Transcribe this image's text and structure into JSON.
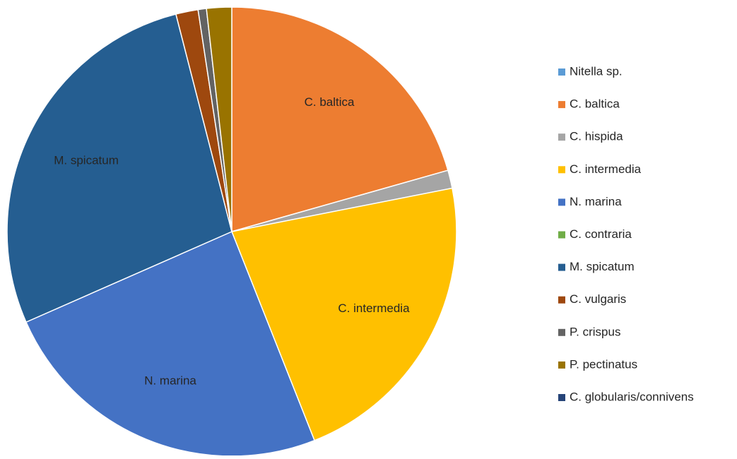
{
  "chart_data": {
    "type": "pie",
    "categories": [
      "Nitella sp.",
      "C. baltica",
      "C. hispida",
      "C. intermedia",
      "N. marina",
      "C. contraria",
      "M. spicatum",
      "C. vulgaris",
      "P. crispus",
      "P. pectinatus",
      "C. globularis/connivens"
    ],
    "values": [
      0,
      20.6,
      1.3,
      22.1,
      24.4,
      0,
      27.6,
      1.6,
      0.6,
      1.8,
      0
    ],
    "colors": [
      "#5b9bd5",
      "#ed7d31",
      "#a5a5a5",
      "#ffc000",
      "#4472c4",
      "#70ad47",
      "#255e91",
      "#9e480e",
      "#636363",
      "#997300",
      "#264478"
    ],
    "legend": "right"
  }
}
